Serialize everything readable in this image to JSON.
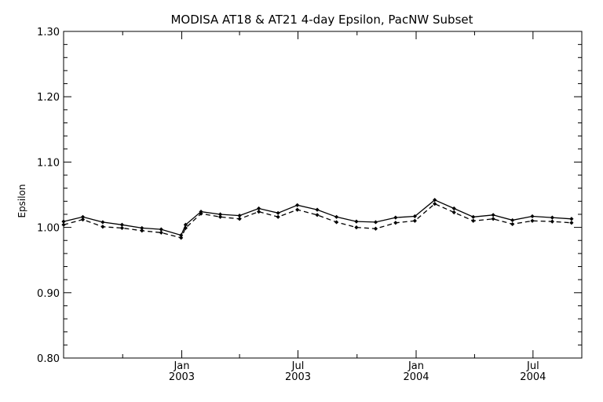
{
  "chart_data": {
    "type": "line",
    "title": "MODISA AT18 & AT21 4-day Epsilon, PacNW Subset",
    "xlabel": "",
    "ylabel": "Epsilon",
    "xlim": [
      "2002-07-01",
      "2004-09-15"
    ],
    "ylim": [
      0.8,
      1.3
    ],
    "grid": false,
    "legend": "none",
    "y_ticks": [
      "0.80",
      "0.90",
      "1.00",
      "1.10",
      "1.20",
      "1.30"
    ],
    "x_ticks": [
      {
        "month": "Jan",
        "year": "2003",
        "date": "2003-01-01"
      },
      {
        "month": "Jul",
        "year": "2003",
        "date": "2003-07-01"
      },
      {
        "month": "Jan",
        "year": "2004",
        "date": "2004-01-01"
      },
      {
        "month": "Jul",
        "year": "2004",
        "date": "2004-07-01"
      }
    ],
    "x_minor_ticks": [
      "2002-10-01",
      "2003-04-01",
      "2003-10-01",
      "2004-04-01"
    ],
    "x": [
      "2002-07-01",
      "2002-07-31",
      "2002-08-31",
      "2002-09-30",
      "2002-10-31",
      "2002-11-30",
      "2002-12-31",
      "2003-01-07",
      "2003-01-31",
      "2003-03-02",
      "2003-04-01",
      "2003-05-01",
      "2003-05-31",
      "2003-06-30",
      "2003-07-31",
      "2003-08-30",
      "2003-09-30",
      "2003-10-30",
      "2003-11-30",
      "2003-12-30",
      "2004-01-30",
      "2004-02-29",
      "2004-03-30",
      "2004-04-30",
      "2004-05-30",
      "2004-06-30",
      "2004-07-31",
      "2004-08-30"
    ],
    "series": [
      {
        "style": "solid",
        "color": "#000000",
        "values": [
          1.009,
          1.016,
          1.008,
          1.004,
          0.999,
          0.997,
          0.988,
          1.004,
          1.024,
          1.02,
          1.018,
          1.029,
          1.022,
          1.034,
          1.027,
          1.016,
          1.009,
          1.008,
          1.015,
          1.017,
          1.042,
          1.029,
          1.016,
          1.019,
          1.011,
          1.017,
          1.015,
          1.013
        ]
      },
      {
        "style": "dashed",
        "color": "#000000",
        "values": [
          1.004,
          1.012,
          1.001,
          0.999,
          0.995,
          0.992,
          0.984,
          0.999,
          1.021,
          1.016,
          1.013,
          1.024,
          1.016,
          1.027,
          1.019,
          1.008,
          1.0,
          0.998,
          1.007,
          1.01,
          1.036,
          1.023,
          1.01,
          1.013,
          1.005,
          1.01,
          1.009,
          1.007
        ]
      }
    ]
  }
}
